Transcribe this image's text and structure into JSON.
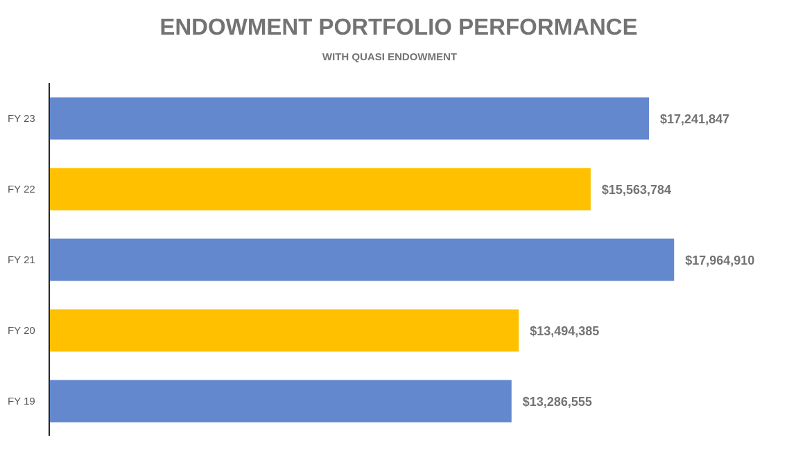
{
  "chart_data": {
    "type": "bar",
    "orientation": "horizontal",
    "title": "ENDOWMENT PORTFOLIO PERFORMANCE",
    "subtitle": "WITH QUASI ENDOWMENT",
    "categories": [
      "FY 23",
      "FY 22",
      "FY 21",
      "FY 20",
      "FY 19"
    ],
    "values": [
      17241847,
      15563784,
      17964910,
      13494385,
      13286555
    ],
    "data_labels": [
      "$17,241,847",
      "$15,563,784",
      "$17,964,910",
      "$13,494,385",
      "$13,286,555"
    ],
    "bar_colors": [
      "#6388CE",
      "#FFC000",
      "#6388CE",
      "#FFC000",
      "#6388CE"
    ],
    "xlim": [
      0,
      18000000
    ],
    "grid": false,
    "legend": "none"
  },
  "colors": {
    "text": "#737373",
    "axis": "#262626",
    "tick": "#595959"
  }
}
